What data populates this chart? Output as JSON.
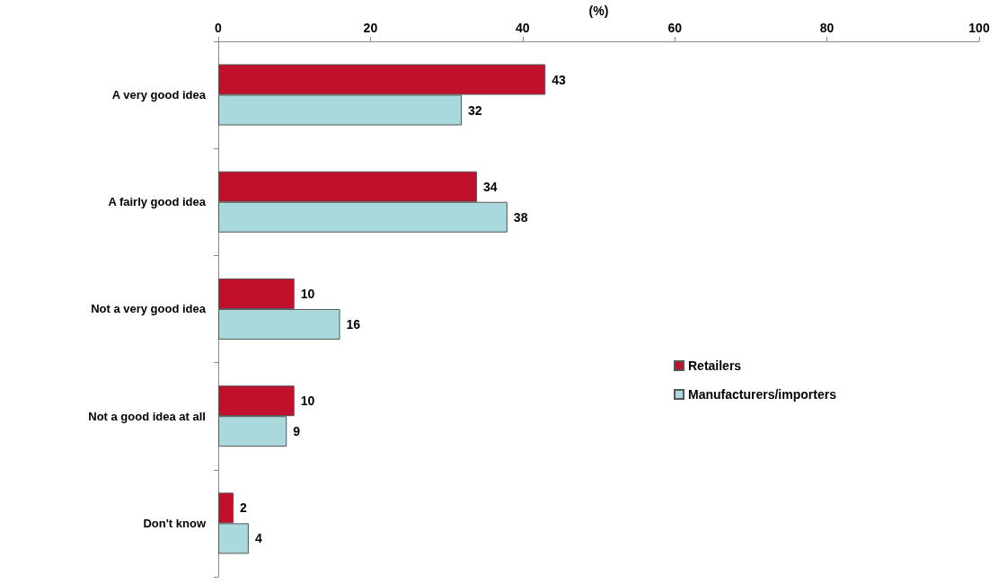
{
  "chart_data": {
    "type": "bar",
    "orientation": "horizontal",
    "xlabel": "(%)",
    "categories": [
      "A very good idea",
      "A fairly good idea",
      "Not a very good idea",
      "Not a good idea at all",
      "Don't know"
    ],
    "series": [
      {
        "name": "Retailers",
        "color": "#c0102c",
        "values": [
          43,
          34,
          10,
          10,
          2
        ]
      },
      {
        "name": "Manufacturers/importers",
        "color": "#a9d9dc",
        "values": [
          32,
          38,
          16,
          9,
          4
        ]
      }
    ],
    "xlim": [
      0,
      100
    ],
    "xticks": [
      0,
      20,
      40,
      60,
      80,
      100
    ],
    "data_labels": true,
    "grid": false,
    "legend": "right"
  }
}
